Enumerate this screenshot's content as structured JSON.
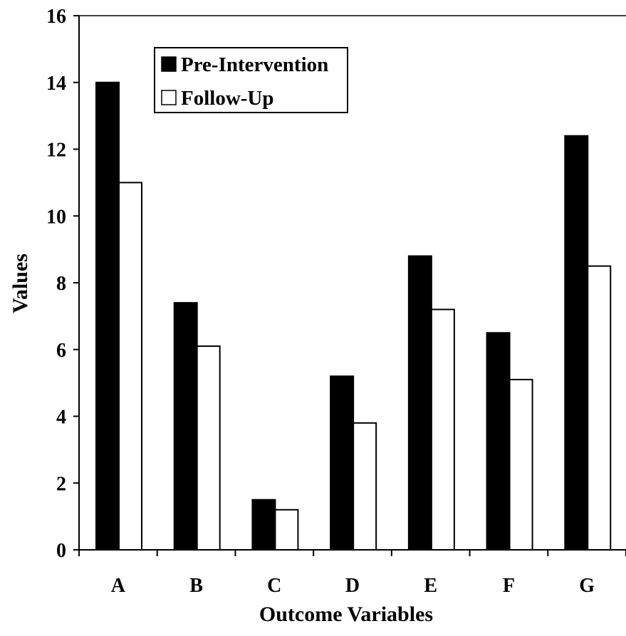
{
  "chart_data": {
    "type": "bar",
    "title": "",
    "xlabel": "Outcome Variables",
    "ylabel": "Values",
    "categories": [
      "A",
      "B",
      "C",
      "D",
      "E",
      "F",
      "G"
    ],
    "series": [
      {
        "name": "Pre-Intervention",
        "color": "#000000",
        "values": [
          14.0,
          7.4,
          1.5,
          5.2,
          8.8,
          6.5,
          12.4
        ]
      },
      {
        "name": "Follow-Up",
        "color": "#ffffff",
        "values": [
          11.0,
          6.1,
          1.2,
          3.8,
          7.2,
          5.1,
          8.5
        ]
      }
    ],
    "ylim": [
      0,
      16
    ],
    "yticks": [
      0,
      2,
      4,
      6,
      8,
      10,
      12,
      14,
      16
    ],
    "grid": false,
    "legend_position": "top-left"
  }
}
